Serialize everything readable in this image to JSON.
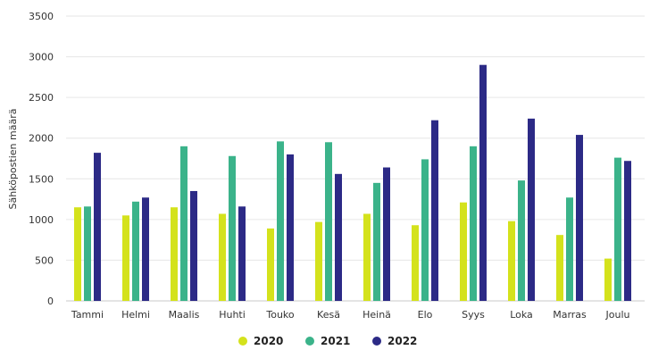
{
  "chart_data": {
    "type": "bar",
    "title": "",
    "xlabel": "",
    "ylabel": "Sähköpostien määrä",
    "ylim": [
      0,
      3500
    ],
    "yticks": [
      0,
      500,
      1000,
      1500,
      2000,
      2500,
      3000,
      3500
    ],
    "grid": true,
    "legend": "bottom",
    "categories": [
      "Tammi",
      "Helmi",
      "Maalis",
      "Huhti",
      "Touko",
      "Kesä",
      "Heinä",
      "Elo",
      "Syys",
      "Loka",
      "Marras",
      "Joulu"
    ],
    "series": [
      {
        "name": "2020",
        "color": "#d4e21c",
        "values": [
          1150,
          1050,
          1150,
          1070,
          890,
          970,
          1070,
          930,
          1210,
          980,
          810,
          520
        ]
      },
      {
        "name": "2021",
        "color": "#3bb38a",
        "values": [
          1160,
          1220,
          1900,
          1780,
          1960,
          1950,
          1450,
          1740,
          1900,
          1480,
          1270,
          1760
        ]
      },
      {
        "name": "2022",
        "color": "#2c2a86",
        "values": [
          1820,
          1270,
          1350,
          1160,
          1800,
          1560,
          1640,
          2220,
          2900,
          2240,
          2040,
          1720
        ]
      }
    ]
  }
}
